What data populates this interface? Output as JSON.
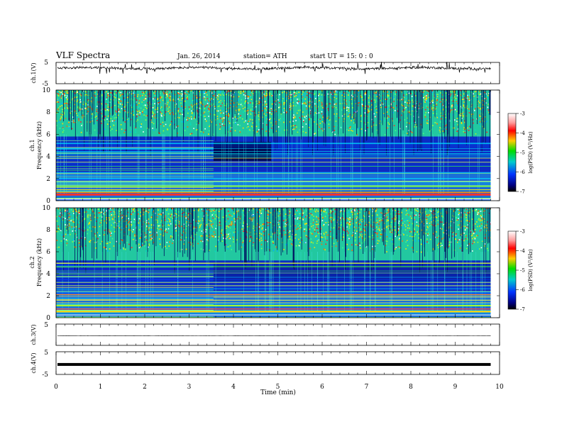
{
  "header": {
    "title": "VLF  Spectra",
    "date": "Jan. 26, 2014",
    "station": "station= ATH",
    "start": "start  UT =   15: 0  : 0"
  },
  "chart_data": [
    {
      "type": "line",
      "id": "ch1-waveform",
      "ylabel": "ch.1(V)",
      "ylim": [
        -5,
        5
      ],
      "yticks": [
        5,
        -5
      ],
      "baseline": 2.3
    },
    {
      "type": "heatmap",
      "id": "ch1-spectrogram",
      "ylabel": "ch.1\nFrequency (kHz)",
      "ylabel_lines": [
        "ch.1",
        "Frequency (kHz)"
      ],
      "ylim": [
        0,
        10
      ],
      "yticks": [
        0,
        2,
        4,
        6,
        8,
        10
      ],
      "colorbar": {
        "label": "log(PSD) (V²/Hz)",
        "range": [
          -7,
          -3
        ],
        "ticks": [
          -3,
          -4,
          -5,
          -6,
          -7
        ]
      }
    },
    {
      "type": "heatmap",
      "id": "ch2-spectrogram",
      "ylabel_lines": [
        "ch.2",
        "Frequency (kHz)"
      ],
      "ylim": [
        0,
        10
      ],
      "yticks": [
        0,
        2,
        4,
        6,
        8,
        10
      ],
      "colorbar": {
        "label": "log(PSD) (V²/Hz)",
        "range": [
          -7,
          -3
        ],
        "ticks": [
          -3,
          -4,
          -5,
          -6,
          -7
        ]
      }
    },
    {
      "type": "line",
      "id": "ch3-waveform",
      "ylabel": "ch.3(V)",
      "ylim": [
        -5,
        5
      ],
      "yticks": [
        5
      ],
      "baseline": -0.5
    },
    {
      "type": "line",
      "id": "ch4-waveform",
      "ylabel": "ch.4(V)",
      "ylim": [
        -5,
        5
      ],
      "yticks": [
        5,
        -5
      ],
      "baseline": -0.6
    }
  ],
  "xaxis": {
    "label": "Time  (min)",
    "xlim": [
      0,
      10
    ],
    "ticks": [
      0,
      1,
      2,
      3,
      4,
      5,
      6,
      7,
      8,
      9,
      10
    ],
    "data_end": 9.8
  },
  "colorbar_tick_labels": [
    "-3",
    "-4",
    "-5",
    "-6",
    "-7"
  ],
  "colorbar_label": "log(PSD) (V²/Hz)"
}
